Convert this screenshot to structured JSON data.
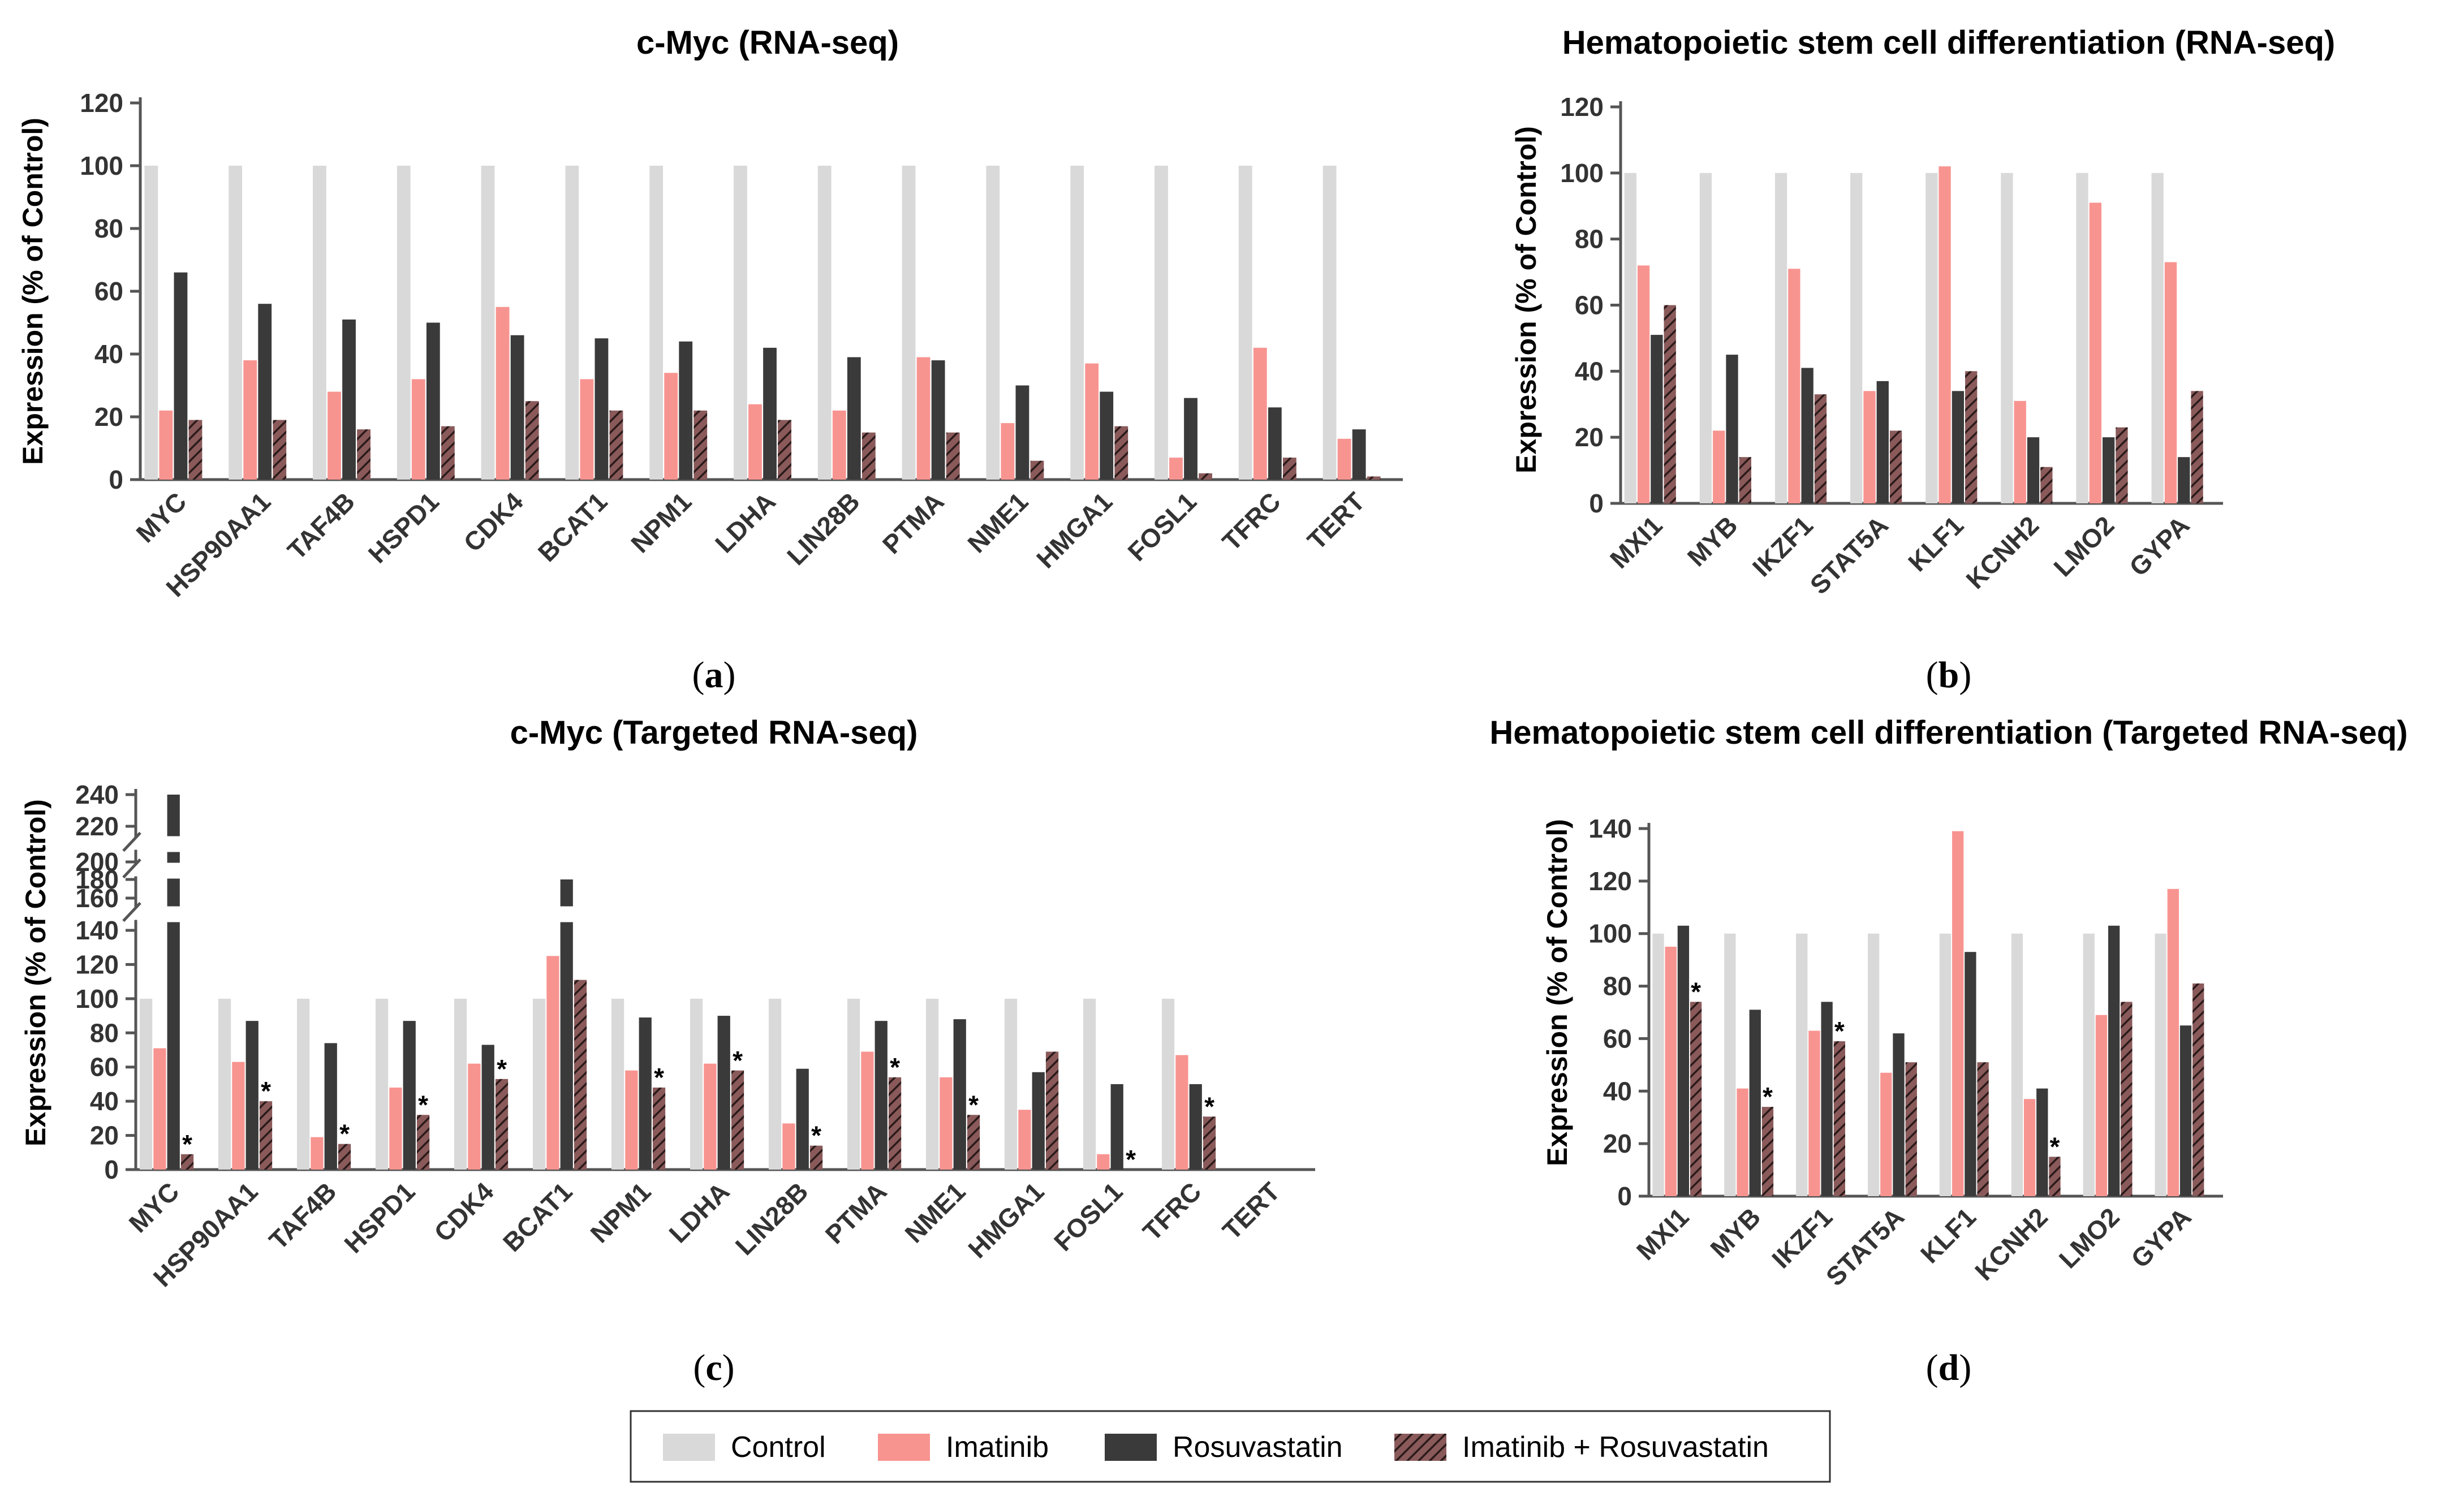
{
  "colors": {
    "control": "#d9d9d9",
    "imatinib": "#f89490",
    "rosuvastatin": "#3a3a3a",
    "combo_fill": "#8a5a5a",
    "combo_stripe": "#2b1a1a",
    "axis": "#555555"
  },
  "legend": {
    "items": [
      {
        "label": "Control"
      },
      {
        "label": "Imatinib"
      },
      {
        "label": "Rosuvastatin"
      },
      {
        "label": "Imatinib + Rosuvastatin"
      }
    ]
  },
  "chart_data": [
    {
      "id": "a",
      "panel_label": "a",
      "type": "bar",
      "title": "c-Myc (RNA-seq)",
      "ylabel": "Expression (% of Control)",
      "ylim": [
        0,
        120
      ],
      "yticks": [
        "0",
        "20",
        "40",
        "60",
        "80",
        "100",
        "120"
      ],
      "categories": [
        "MYC",
        "HSP90AA1",
        "TAF4B",
        "HSPD1",
        "CDK4",
        "BCAT1",
        "NPM1",
        "LDHA",
        "LIN28B",
        "PTMA",
        "NME1",
        "HMGA1",
        "FOSL1",
        "TFRC",
        "TERT"
      ],
      "series": [
        {
          "name": "Control",
          "values": [
            100,
            100,
            100,
            100,
            100,
            100,
            100,
            100,
            100,
            100,
            100,
            100,
            100,
            100,
            100
          ]
        },
        {
          "name": "Imatinib",
          "values": [
            22,
            38,
            28,
            32,
            55,
            32,
            34,
            24,
            22,
            39,
            18,
            37,
            7,
            42,
            13
          ]
        },
        {
          "name": "Rosuvastatin",
          "values": [
            66,
            56,
            51,
            50,
            46,
            45,
            44,
            42,
            39,
            38,
            30,
            28,
            26,
            23,
            16
          ]
        },
        {
          "name": "Imatinib + Rosuvastatin",
          "values": [
            19,
            19,
            16,
            17,
            25,
            22,
            22,
            19,
            15,
            15,
            6,
            17,
            2,
            7,
            1
          ]
        }
      ]
    },
    {
      "id": "b",
      "panel_label": "b",
      "type": "bar",
      "title": "Hematopoietic stem cell differentiation (RNA-seq)",
      "ylabel": "Expression (% of Control)",
      "ylim": [
        0,
        120
      ],
      "yticks": [
        "0",
        "20",
        "40",
        "60",
        "80",
        "100",
        "120"
      ],
      "categories": [
        "MXI1",
        "MYB",
        "IKZF1",
        "STAT5A",
        "KLF1",
        "KCNH2",
        "LMO2",
        "GYPA"
      ],
      "series": [
        {
          "name": "Control",
          "values": [
            100,
            100,
            100,
            100,
            100,
            100,
            100,
            100
          ]
        },
        {
          "name": "Imatinib",
          "values": [
            72,
            22,
            71,
            34,
            102,
            31,
            91,
            73
          ]
        },
        {
          "name": "Rosuvastatin",
          "values": [
            51,
            45,
            41,
            37,
            34,
            20,
            20,
            14
          ]
        },
        {
          "name": "Imatinib + Rosuvastatin",
          "values": [
            60,
            14,
            33,
            22,
            40,
            11,
            23,
            34
          ]
        }
      ]
    },
    {
      "id": "c",
      "panel_label": "c",
      "type": "bar",
      "title": "c-Myc (Targeted RNA-seq)",
      "ylabel": "Expression (% of Control)",
      "ylim": [
        0,
        240
      ],
      "yticks": [
        "0",
        "20",
        "40",
        "60",
        "80",
        "100",
        "120",
        "140",
        "160",
        "180",
        "200",
        "220",
        "240"
      ],
      "axis_breaks": [
        [
          140,
          160
        ],
        [
          180,
          200
        ],
        [
          200,
          220
        ]
      ],
      "categories": [
        "MYC",
        "HSP90AA1",
        "TAF4B",
        "HSPD1",
        "CDK4",
        "BCAT1",
        "NPM1",
        "LDHA",
        "LIN28B",
        "PTMA",
        "NME1",
        "HMGA1",
        "FOSL1",
        "TFRC",
        "TERT"
      ],
      "series": [
        {
          "name": "Control",
          "values": [
            100,
            100,
            100,
            100,
            100,
            100,
            100,
            100,
            100,
            100,
            100,
            100,
            100,
            100,
            0
          ]
        },
        {
          "name": "Imatinib",
          "values": [
            71,
            63,
            19,
            48,
            62,
            125,
            58,
            62,
            27,
            69,
            54,
            35,
            9,
            67,
            0
          ]
        },
        {
          "name": "Rosuvastatin",
          "values": [
            240,
            87,
            74,
            87,
            73,
            180,
            89,
            90,
            59,
            87,
            88,
            57,
            50,
            50,
            0
          ]
        },
        {
          "name": "Imatinib + Rosuvastatin",
          "values": [
            9,
            40,
            15,
            32,
            53,
            111,
            48,
            58,
            14,
            54,
            32,
            69,
            0,
            31,
            0
          ]
        }
      ],
      "significance": [
        "*",
        "*",
        "*",
        "*",
        "*",
        "",
        "*",
        "*",
        "*",
        "*",
        "*",
        "",
        "*",
        "*",
        ""
      ]
    },
    {
      "id": "d",
      "panel_label": "d",
      "type": "bar",
      "title": "Hematopoietic stem cell differentiation (Targeted RNA-seq)",
      "ylabel": "Expression (% of Control)",
      "ylim": [
        0,
        140
      ],
      "yticks": [
        "0",
        "20",
        "40",
        "60",
        "80",
        "100",
        "120",
        "140"
      ],
      "categories": [
        "MXI1",
        "MYB",
        "IKZF1",
        "STAT5A",
        "KLF1",
        "KCNH2",
        "LMO2",
        "GYPA"
      ],
      "series": [
        {
          "name": "Control",
          "values": [
            100,
            100,
            100,
            100,
            100,
            100,
            100,
            100
          ]
        },
        {
          "name": "Imatinib",
          "values": [
            95,
            41,
            63,
            47,
            139,
            37,
            69,
            117
          ]
        },
        {
          "name": "Rosuvastatin",
          "values": [
            103,
            71,
            74,
            62,
            93,
            41,
            103,
            65
          ]
        },
        {
          "name": "Imatinib + Rosuvastatin",
          "values": [
            74,
            34,
            59,
            51,
            51,
            15,
            74,
            81
          ]
        }
      ],
      "significance": [
        "*",
        "*",
        "*",
        "",
        "",
        "*",
        "",
        ""
      ]
    }
  ]
}
